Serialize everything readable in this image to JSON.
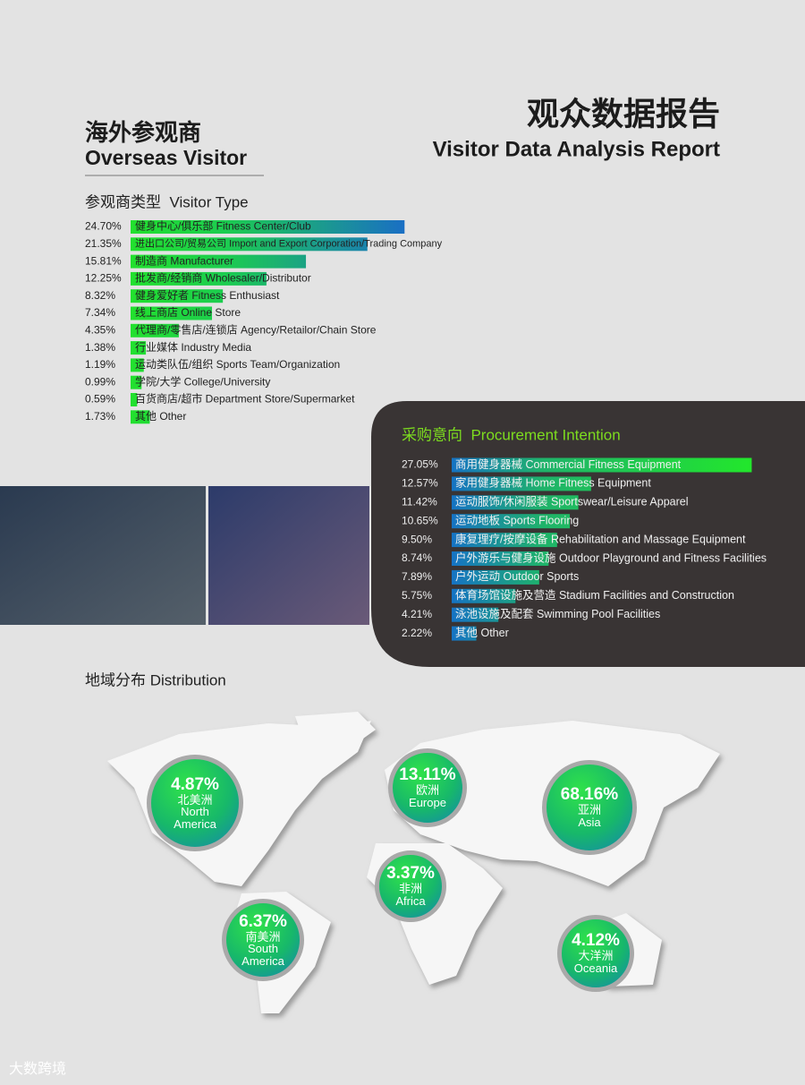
{
  "header": {
    "title_cn": "观众数据报告",
    "title_en": "Visitor Data Analysis Report"
  },
  "overseas": {
    "heading_cn": "海外参观商",
    "heading_en": "Overseas Visitor",
    "subheading": "参观商类型  Visitor Type",
    "items": [
      {
        "value": 24.7,
        "value_label": "24.70%",
        "label": "健身中心/俱乐部 Fitness Center/Club"
      },
      {
        "value": 21.35,
        "value_label": "21.35%",
        "label": "进出口公司/贸易公司 Import and Export Corporation/Trading Company"
      },
      {
        "value": 15.81,
        "value_label": "15.81%",
        "label": "制造商 Manufacturer"
      },
      {
        "value": 12.25,
        "value_label": "12.25%",
        "label": "批发商/经销商 Wholesaler/Distributor"
      },
      {
        "value": 8.32,
        "value_label": "8.32%",
        "label": "健身爱好者 Fitness Enthusiast"
      },
      {
        "value": 7.34,
        "value_label": "7.34%",
        "label": "线上商店 Online Store"
      },
      {
        "value": 4.35,
        "value_label": "4.35%",
        "label": "代理商/零售店/连锁店 Agency/Retailor/Chain Store"
      },
      {
        "value": 1.38,
        "value_label": "1.38%",
        "label": "行业媒体 Industry Media"
      },
      {
        "value": 1.19,
        "value_label": "1.19%",
        "label": "运动类队伍/组织 Sports Team/Organization"
      },
      {
        "value": 0.99,
        "value_label": "0.99%",
        "label": "学院/大学 College/University"
      },
      {
        "value": 0.59,
        "value_label": "0.59%",
        "label": "百货商店/超市 Department Store/Supermarket"
      },
      {
        "value": 1.73,
        "value_label": "1.73%",
        "label": "其他 Other"
      }
    ]
  },
  "procurement": {
    "title": "采购意向  Procurement Intention",
    "items": [
      {
        "value": 27.05,
        "value_label": "27.05%",
        "label": "商用健身器械 Commercial Fitness Equipment"
      },
      {
        "value": 12.57,
        "value_label": "12.57%",
        "label": "家用健身器械 Home Fitness Equipment"
      },
      {
        "value": 11.42,
        "value_label": "11.42%",
        "label": "运动服饰/休闲服装 Sportswear/Leisure Apparel"
      },
      {
        "value": 10.65,
        "value_label": "10.65%",
        "label": "运动地板 Sports Flooring"
      },
      {
        "value": 9.5,
        "value_label": "9.50%",
        "label": "康复理疗/按摩设备 Rehabilitation and Massage Equipment"
      },
      {
        "value": 8.74,
        "value_label": "8.74%",
        "label": "户外游乐与健身设施 Outdoor Playground and Fitness Facilities"
      },
      {
        "value": 7.89,
        "value_label": "7.89%",
        "label": "户外运动 Outdoor Sports"
      },
      {
        "value": 5.75,
        "value_label": "5.75%",
        "label": "体育场馆设施及营造 Stadium Facilities and Construction"
      },
      {
        "value": 4.21,
        "value_label": "4.21%",
        "label": "泳池设施及配套 Swimming Pool Facilities"
      },
      {
        "value": 2.22,
        "value_label": "2.22%",
        "label": "其他 Other"
      }
    ]
  },
  "distribution": {
    "title": "地域分布 Distribution",
    "regions": [
      {
        "value_label": "4.87%",
        "name_cn": "北美洲",
        "name_en": "North America"
      },
      {
        "value_label": "13.11%",
        "name_cn": "欧洲",
        "name_en": "Europe"
      },
      {
        "value_label": "68.16%",
        "name_cn": "亚洲",
        "name_en": "Asia"
      },
      {
        "value_label": "3.37%",
        "name_cn": "非洲",
        "name_en": "Africa"
      },
      {
        "value_label": "6.37%",
        "name_cn": "南美洲",
        "name_en": "South America"
      },
      {
        "value_label": "4.12%",
        "name_cn": "大洋洲",
        "name_en": "Oceania"
      }
    ]
  },
  "watermark": "大数跨境"
}
